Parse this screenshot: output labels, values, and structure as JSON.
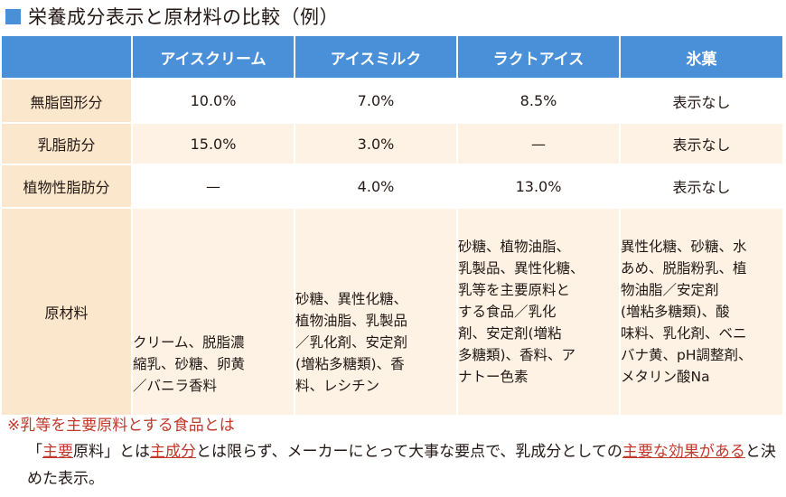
{
  "title": "栄養成分表示と原材料の比較（例）",
  "table": {
    "headers": [
      "アイスクリーム",
      "アイスミルク",
      "ラクトアイス",
      "氷菓"
    ],
    "rows": [
      {
        "label": "無脂固形分",
        "values": [
          "10.0%",
          "7.0%",
          "8.5%",
          "表示なし"
        ]
      },
      {
        "label": "乳脂肪分",
        "values": [
          "15.0%",
          "3.0%",
          "—",
          "表示なし"
        ]
      },
      {
        "label": "植物性脂肪分",
        "values": [
          "—",
          "4.0%",
          "13.0%",
          "表示なし"
        ]
      }
    ],
    "ingredients": {
      "label": "原材料",
      "values": [
        [
          "クリーム、脱脂濃",
          "縮乳、砂糖、卵黄",
          "／バニラ香料"
        ],
        [
          "砂糖、異性化糖、",
          "植物油脂、乳製品",
          "／乳化剤、安定剤",
          "(増粘多糖類)、香",
          "料、レシチン"
        ],
        [
          "砂糖、植物油脂、",
          "乳製品、異性化糖、",
          "乳等を主要原料と",
          "する食品／乳化",
          "剤、安定剤(増粘",
          "多糖類)、香料、ア",
          "ナトー色素"
        ],
        [
          "異性化糖、砂糖、水",
          "あめ、脱脂粉乳、植",
          "物油脂／安定剤",
          "(増粘多糖類)、酸",
          "味料、乳化剤、ベニ",
          "バナ黄、pH調整剤、",
          "メタリン酸Na"
        ]
      ]
    }
  },
  "note": {
    "heading": "※乳等を主要原料とする食品とは",
    "text_parts": [
      "「",
      "主要",
      "原料」とは",
      "主成分",
      "とは限らず、メーカーにとって大事な要点で、乳成分としての",
      "主要な効果がある",
      "と決めた表示。"
    ]
  }
}
